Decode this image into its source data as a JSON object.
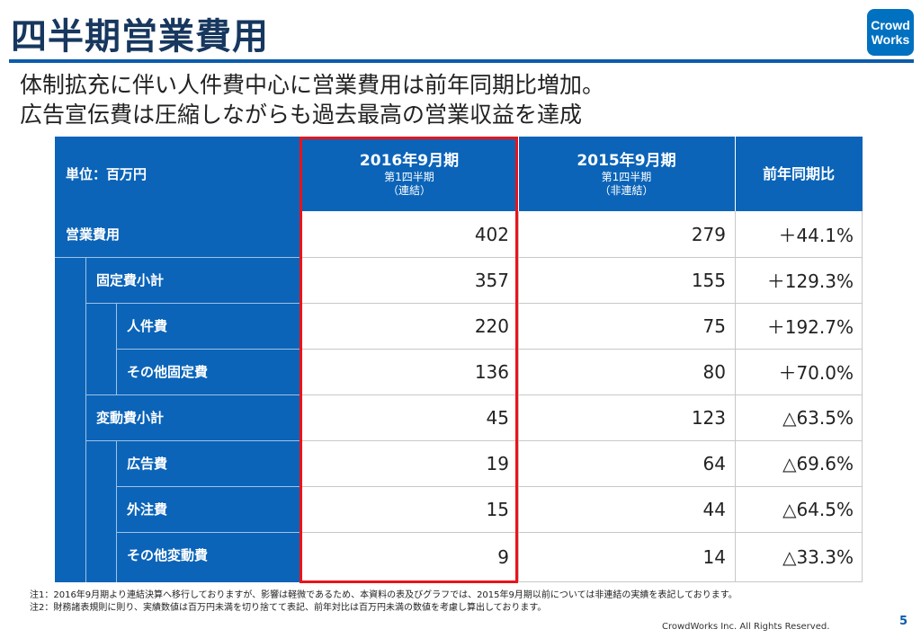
{
  "title": "四半期営業費用",
  "logo": {
    "line1": "Crowd",
    "line2": "Works"
  },
  "subtitle": {
    "line1": "体制拡充に伴い人件費中心に営業費用は前年同期比増加。",
    "line2": "広告宣伝費は圧縮しながらも過去最高の営業収益を達成"
  },
  "table": {
    "unit_label": "単位：百万円",
    "col_2016": {
      "main": "2016年9月期",
      "sub1": "第1四半期",
      "sub2": "（連結）"
    },
    "col_2015": {
      "main": "2015年9月期",
      "sub1": "第1四半期",
      "sub2": "（非連結）"
    },
    "col_yoy": "前年同期比",
    "rows": [
      {
        "label": "営業費用",
        "v2016": "402",
        "v2015": "279",
        "yoy": "＋44.1%"
      },
      {
        "label": "固定費小計",
        "v2016": "357",
        "v2015": "155",
        "yoy": "＋129.3%"
      },
      {
        "label": "人件費",
        "v2016": "220",
        "v2015": "75",
        "yoy": "＋192.7%"
      },
      {
        "label": "その他固定費",
        "v2016": "136",
        "v2015": "80",
        "yoy": "＋70.0%"
      },
      {
        "label": "変動費小計",
        "v2016": "45",
        "v2015": "123",
        "yoy": "△63.5%"
      },
      {
        "label": "広告費",
        "v2016": "19",
        "v2015": "64",
        "yoy": "△69.6%"
      },
      {
        "label": "外注費",
        "v2016": "15",
        "v2015": "44",
        "yoy": "△64.5%"
      },
      {
        "label": "その他変動費",
        "v2016": "9",
        "v2015": "14",
        "yoy": "△33.3%"
      }
    ]
  },
  "notes": {
    "note1": "注1：2016年9月期より連結決算へ移行しておりますが、影響は軽微であるため、本資料の表及びグラフでは、2015年9月期以前については非連結の実績を表記しております。",
    "note2": "注2：財務諸表規則に則り、実績数値は百万円未満を切り捨てて表記、前年対比は百万円未満の数値を考慮し算出しております。"
  },
  "footer": {
    "copyright": "CrowdWorks Inc. All Rights Reserved.",
    "page": "5"
  },
  "colors": {
    "header_blue": "#0b64b8",
    "title_navy": "#17375e",
    "highlight_red": "#e8141b",
    "logo_blue": "#0071c1"
  }
}
